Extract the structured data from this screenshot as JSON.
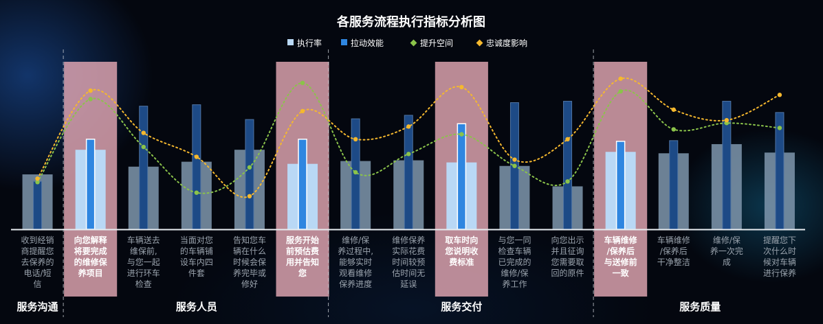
{
  "chart_data": {
    "type": "bar",
    "title": "各服务流程执行指标分析图",
    "legend": {
      "placement": "top-center",
      "items": [
        {
          "name": "执行率",
          "marker": "square",
          "color": "#b9d8f5"
        },
        {
          "name": "拉动效能",
          "marker": "square",
          "color": "#2f86e0"
        },
        {
          "name": "提升空间",
          "marker": "diamond",
          "color": "#8bc34a"
        },
        {
          "name": "忠诚度影响",
          "marker": "diamond",
          "color": "#f5b82e"
        }
      ]
    },
    "categories": [
      "收到经销商提醒您去保养的电话/短信",
      "向您解释将要完成的维修保养项目",
      "车辆送去维保前，与您一起进行环车检查",
      "当面对您的车辆铺设车内四件套",
      "告知您车辆在什么时候会保养完毕或修好",
      "服务开始前预估费用并告知您",
      "维修/保养过程中，能够实时观看维修保养进度",
      "维修保养实际花费时间较预估时间无延误",
      "取车时向您说明收费标准",
      "与您一同检查车辆已完成的维修/保养工作",
      "向您出示并且征询您需要取回的原件",
      "车辆维修/保养后与送修前一致",
      "车辆维修/保养后干净整洁",
      "维修/保养一次完成",
      "提醒您下次什么时候对车辆进行保养"
    ],
    "category_lines": [
      [
        "收到经销",
        "商提醒您",
        "去保养的",
        "电话/短",
        "信"
      ],
      [
        "向您解释",
        "将要完成",
        "的维修保",
        "养项目"
      ],
      [
        "车辆送去",
        "维保前,",
        "与您一起",
        "进行环车",
        "检查"
      ],
      [
        "当面对您",
        "的车辆铺",
        "设车内四",
        "件套"
      ],
      [
        "告知您车",
        "辆在什么",
        "时候会保",
        "养完毕或",
        "修好"
      ],
      [
        "服务开始",
        "前预估费",
        "用并告知",
        "您"
      ],
      [
        "维修/保",
        "养过程中,",
        "能够实时",
        "观看维修",
        "保养进度"
      ],
      [
        "维修保养",
        "实际花费",
        "时间较预",
        "估时间无",
        "延误"
      ],
      [
        "取车时向",
        "您说明收",
        "费标准"
      ],
      [
        "与您一同",
        "检查车辆",
        "已完成的",
        "维修/保",
        "养工作"
      ],
      [
        "向您出示",
        "并且征询",
        "您需要取",
        "回的原件"
      ],
      [
        "车辆维修",
        "/保养后",
        "与送修前",
        "一致"
      ],
      [
        "车辆维修",
        "/保养后",
        "干净整洁"
      ],
      [
        "维修/保",
        "养一次完",
        "成"
      ],
      [
        "提醒您下",
        "次什么时",
        "候对车辆",
        "进行保养"
      ]
    ],
    "highlighted": [
      1,
      5,
      8,
      11
    ],
    "series": [
      {
        "name": "执行率",
        "values": [
          78,
          113,
          89,
          96,
          113,
          93,
          97,
          98,
          95,
          90,
          61,
          110,
          108,
          121,
          109
        ]
      },
      {
        "name": "拉动效能",
        "values": [
          68,
          128,
          175,
          177,
          156,
          128,
          157,
          162,
          150,
          180,
          182,
          125,
          126,
          182,
          166
        ]
      },
      {
        "name": "提升空间",
        "values": [
          67,
          185,
          117,
          52,
          88,
          208,
          81,
          107,
          135,
          90,
          68,
          196,
          142,
          151,
          144
        ]
      },
      {
        "name": "忠诚度影响",
        "values": [
          72,
          197,
          137,
          103,
          47,
          168,
          128,
          146,
          202,
          99,
          128,
          214,
          170,
          155,
          191
        ]
      }
    ],
    "ylim": [
      0,
      240
    ],
    "groups": [
      {
        "name": "服务沟通",
        "start": 0,
        "end": 0
      },
      {
        "name": "服务人员",
        "start": 1,
        "end": 5
      },
      {
        "name": "服务交付",
        "start": 6,
        "end": 10
      },
      {
        "name": "服务质量",
        "start": 11,
        "end": 14
      }
    ],
    "grid": false,
    "colors": {
      "bar": "#b9d8f5",
      "bar_dim": "#7f96ad",
      "thin_bar": "#2f86e0",
      "thin_bar_dim": "#1d4a86",
      "green_line": "#8bc34a",
      "orange_line": "#f5b82e",
      "highlight_band": "#e3a7b3"
    }
  }
}
